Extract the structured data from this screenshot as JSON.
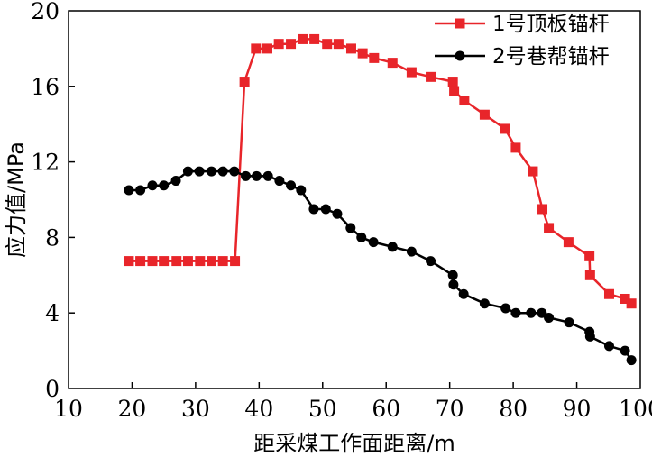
{
  "chart_data": {
    "type": "line",
    "title": "",
    "xlabel": "距采煤工作面距离/m",
    "ylabel": "应力值/MPa",
    "xlim": [
      10,
      100
    ],
    "ylim": [
      0,
      20
    ],
    "xticks": [
      "10",
      "20",
      "30",
      "40",
      "50",
      "60",
      "70",
      "80",
      "90",
      "100"
    ],
    "yticks": [
      "0",
      "4",
      "8",
      "12",
      "16",
      "20"
    ],
    "grid": false,
    "legend_position": "top-right",
    "series": [
      {
        "name": "1号顶板锚杆",
        "color": "#e8252a",
        "marker": "square",
        "points": [
          [
            19.5,
            6.75
          ],
          [
            21.3,
            6.75
          ],
          [
            23.2,
            6.75
          ],
          [
            25.0,
            6.75
          ],
          [
            27.0,
            6.75
          ],
          [
            28.8,
            6.75
          ],
          [
            30.7,
            6.75
          ],
          [
            32.5,
            6.75
          ],
          [
            34.3,
            6.75
          ],
          [
            36.2,
            6.75
          ],
          [
            37.7,
            16.25
          ],
          [
            39.5,
            18.0
          ],
          [
            41.3,
            18.0
          ],
          [
            43.1,
            18.25
          ],
          [
            45.0,
            18.25
          ],
          [
            46.9,
            18.5
          ],
          [
            48.7,
            18.5
          ],
          [
            50.7,
            18.25
          ],
          [
            52.5,
            18.25
          ],
          [
            54.5,
            18.0
          ],
          [
            56.3,
            17.75
          ],
          [
            58.1,
            17.5
          ],
          [
            61.0,
            17.25
          ],
          [
            64.0,
            16.75
          ],
          [
            67.0,
            16.5
          ],
          [
            70.5,
            16.25
          ],
          [
            70.7,
            15.75
          ],
          [
            72.3,
            15.25
          ],
          [
            75.5,
            14.5
          ],
          [
            78.7,
            13.75
          ],
          [
            80.4,
            12.75
          ],
          [
            83.1,
            11.5
          ],
          [
            84.6,
            9.5
          ],
          [
            85.6,
            8.5
          ],
          [
            88.7,
            7.75
          ],
          [
            92.0,
            7.0
          ],
          [
            92.1,
            6.0
          ],
          [
            95.1,
            5.0
          ],
          [
            97.6,
            4.75
          ],
          [
            98.6,
            4.5
          ]
        ]
      },
      {
        "name": "2号巷帮锚杆",
        "color": "#000000",
        "marker": "circle",
        "points": [
          [
            19.5,
            10.5
          ],
          [
            21.3,
            10.5
          ],
          [
            23.2,
            10.75
          ],
          [
            25.0,
            10.75
          ],
          [
            26.9,
            11.0
          ],
          [
            28.8,
            11.5
          ],
          [
            30.6,
            11.5
          ],
          [
            32.5,
            11.5
          ],
          [
            34.3,
            11.5
          ],
          [
            36.1,
            11.5
          ],
          [
            37.9,
            11.25
          ],
          [
            39.6,
            11.25
          ],
          [
            41.4,
            11.25
          ],
          [
            43.2,
            11.0
          ],
          [
            45.0,
            10.75
          ],
          [
            46.6,
            10.5
          ],
          [
            48.6,
            9.5
          ],
          [
            50.5,
            9.5
          ],
          [
            52.3,
            9.25
          ],
          [
            54.4,
            8.5
          ],
          [
            56.1,
            8.0
          ],
          [
            58.0,
            7.75
          ],
          [
            61.0,
            7.5
          ],
          [
            64.0,
            7.25
          ],
          [
            67.0,
            6.75
          ],
          [
            70.5,
            6.0
          ],
          [
            70.6,
            5.5
          ],
          [
            72.2,
            5.0
          ],
          [
            75.5,
            4.5
          ],
          [
            78.8,
            4.25
          ],
          [
            80.4,
            4.0
          ],
          [
            82.8,
            4.0
          ],
          [
            84.5,
            4.0
          ],
          [
            85.6,
            3.75
          ],
          [
            88.8,
            3.5
          ],
          [
            92.0,
            3.0
          ],
          [
            92.1,
            2.75
          ],
          [
            95.1,
            2.25
          ],
          [
            97.6,
            2.0
          ],
          [
            98.6,
            1.5
          ]
        ]
      }
    ]
  }
}
